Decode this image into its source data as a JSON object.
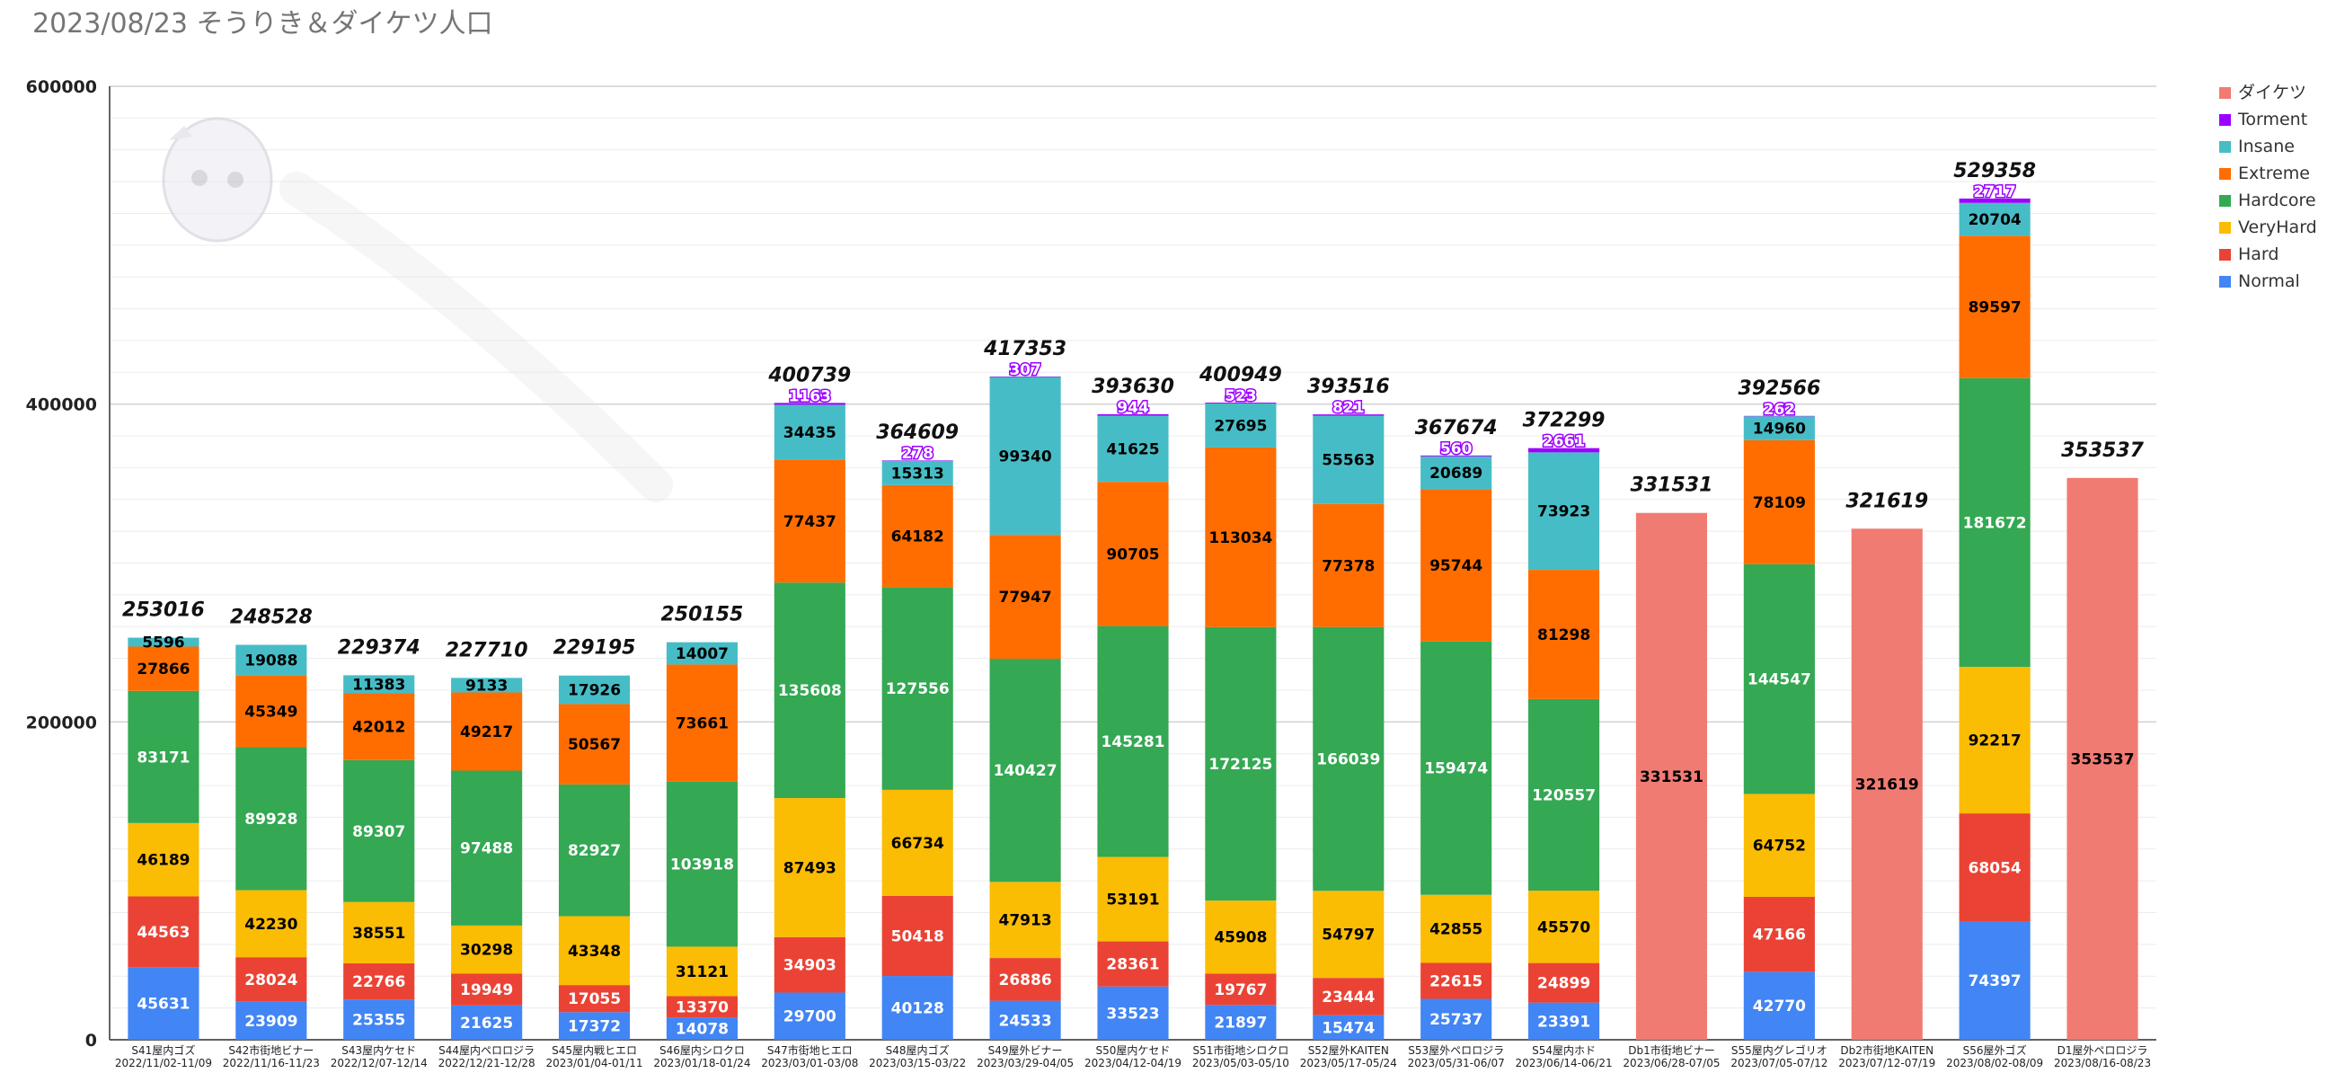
{
  "chart_data": {
    "type": "bar",
    "stacked": true,
    "title": "2023/08/23 そうりき＆ダイケツ人口",
    "xlabel": "",
    "ylabel": "",
    "ylim": [
      0,
      600000
    ],
    "yticks": [
      0,
      200000,
      400000,
      600000
    ],
    "grid": true,
    "legend_position": "top-right",
    "categories": [
      {
        "line1": "S41屋内ゴズ",
        "line2": "2022/11/02-11/09"
      },
      {
        "line1": "S42市街地ビナー",
        "line2": "2022/11/16-11/23"
      },
      {
        "line1": "S43屋内ケセド",
        "line2": "2022/12/07-12/14"
      },
      {
        "line1": "S44屋内ペロロジラ",
        "line2": "2022/12/21-12/28"
      },
      {
        "line1": "S45屋内戦ヒエロ",
        "line2": "2023/01/04-01/11"
      },
      {
        "line1": "S46屋内シロクロ",
        "line2": "2023/01/18-01/24"
      },
      {
        "line1": "S47市街地ヒエロ",
        "line2": "2023/03/01-03/08"
      },
      {
        "line1": "S48屋内ゴズ",
        "line2": "2023/03/15-03/22"
      },
      {
        "line1": "S49屋外ビナー",
        "line2": "2023/03/29-04/05"
      },
      {
        "line1": "S50屋内ケセド",
        "line2": "2023/04/12-04/19"
      },
      {
        "line1": "S51市街地シロクロ",
        "line2": "2023/05/03-05/10"
      },
      {
        "line1": "S52屋外KAITEN",
        "line2": "2023/05/17-05/24"
      },
      {
        "line1": "S53屋外ペロロジラ",
        "line2": "2023/05/31-06/07"
      },
      {
        "line1": "S54屋内ホド",
        "line2": "2023/06/14-06/21"
      },
      {
        "line1": "Db1市街地ビナー",
        "line2": "2023/06/28-07/05"
      },
      {
        "line1": "S55屋内グレゴリオ",
        "line2": "2023/07/05-07/12"
      },
      {
        "line1": "Db2市街地KAITEN",
        "line2": "2023/07/12-07/19"
      },
      {
        "line1": "S56屋外ゴズ",
        "line2": "2023/08/02-08/09"
      },
      {
        "line1": "D1屋外ペロロジラ",
        "line2": "2023/08/16-08/23"
      }
    ],
    "series": [
      {
        "name": "Normal",
        "color": "#4285f4",
        "label_color": "#ffffff",
        "values": [
          45631,
          23909,
          25355,
          21625,
          17372,
          14078,
          29700,
          40128,
          24533,
          33523,
          21897,
          15474,
          25737,
          23391,
          null,
          42770,
          null,
          74397,
          null
        ]
      },
      {
        "name": "Hard",
        "color": "#ea4335",
        "label_color": "#ffffff",
        "values": [
          44563,
          28024,
          22766,
          19949,
          17055,
          13370,
          34903,
          50418,
          26886,
          28361,
          19767,
          23444,
          22615,
          24899,
          null,
          47166,
          null,
          68054,
          null
        ]
      },
      {
        "name": "VeryHard",
        "color": "#fbbc04",
        "label_color": "#000000",
        "values": [
          46189,
          42230,
          38551,
          30298,
          43348,
          31121,
          87493,
          66734,
          47913,
          53191,
          45908,
          54797,
          42855,
          45570,
          null,
          64752,
          null,
          92217,
          null
        ]
      },
      {
        "name": "Hardcore",
        "color": "#34a853",
        "label_color": "#ffffff",
        "values": [
          83171,
          89928,
          89307,
          97488,
          82927,
          103918,
          135608,
          127556,
          140427,
          145281,
          172125,
          166039,
          159474,
          120557,
          null,
          144547,
          null,
          181672,
          null
        ]
      },
      {
        "name": "Extreme",
        "color": "#ff6d01",
        "label_color": "#000000",
        "values": [
          27866,
          45349,
          42012,
          49217,
          50567,
          73661,
          77437,
          64182,
          77947,
          90705,
          113034,
          77378,
          95744,
          81298,
          null,
          78109,
          null,
          89597,
          null
        ]
      },
      {
        "name": "Insane",
        "color": "#46bdc6",
        "label_color": "#000000",
        "values": [
          5596,
          19088,
          11383,
          9133,
          17926,
          14007,
          34435,
          15313,
          99340,
          41625,
          27695,
          55563,
          20689,
          73923,
          null,
          14960,
          null,
          20704,
          null
        ]
      },
      {
        "name": "Torment",
        "color": "#9d00ff",
        "label_color": "#ffffff",
        "values": [
          null,
          null,
          null,
          null,
          null,
          null,
          1163,
          278,
          307,
          944,
          523,
          821,
          560,
          2661,
          null,
          262,
          null,
          2717,
          null
        ]
      },
      {
        "name": "ダイケツ",
        "color": "#f07b72",
        "label_color": "#000000",
        "values": [
          null,
          null,
          null,
          null,
          null,
          null,
          null,
          null,
          null,
          null,
          null,
          null,
          null,
          null,
          331531,
          null,
          321619,
          null,
          353537
        ]
      }
    ],
    "totals": [
      253016,
      248528,
      229374,
      227710,
      229195,
      250155,
      400739,
      364609,
      417353,
      393630,
      400949,
      393516,
      367674,
      372299,
      331531,
      392566,
      321619,
      529358,
      353537
    ],
    "legend_order": [
      "ダイケツ",
      "Torment",
      "Insane",
      "Extreme",
      "Hardcore",
      "VeryHard",
      "Hard",
      "Normal"
    ]
  }
}
